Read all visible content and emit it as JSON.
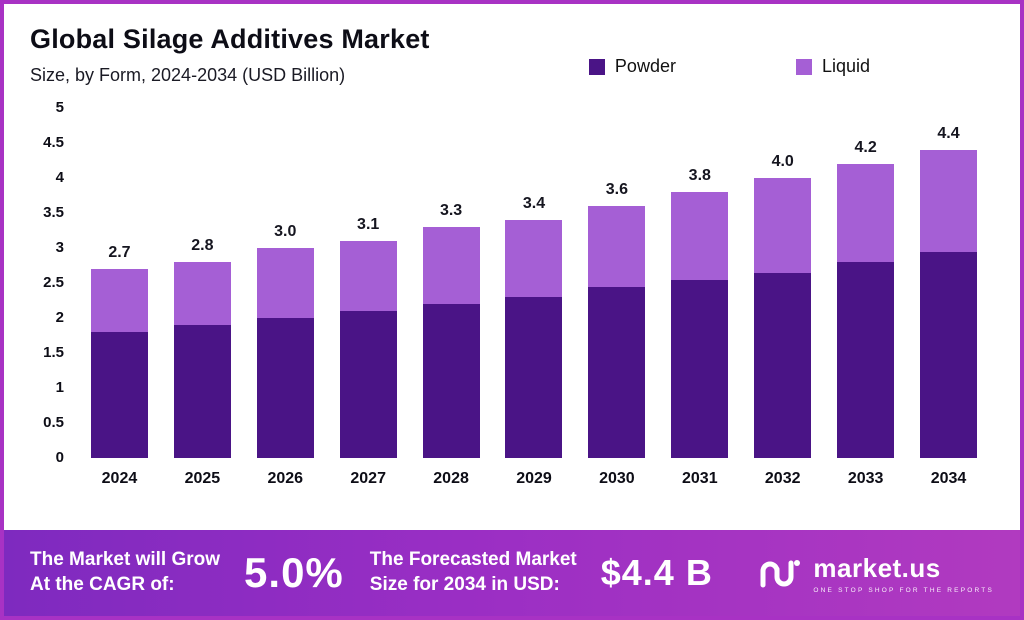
{
  "header": {
    "title": "Global Silage Additives Market",
    "subtitle": "Size, by Form, 2024-2034 (USD Billion)"
  },
  "chart_data": {
    "type": "bar",
    "stacked": true,
    "title": "Global Silage Additives Market",
    "subtitle": "Size, by Form, 2024-2034 (USD Billion)",
    "categories": [
      "2024",
      "2025",
      "2026",
      "2027",
      "2028",
      "2029",
      "2030",
      "2031",
      "2032",
      "2033",
      "2034"
    ],
    "series": [
      {
        "name": "Powder",
        "color": "#4a1486",
        "values": [
          1.8,
          1.9,
          2.0,
          2.1,
          2.2,
          2.3,
          2.45,
          2.55,
          2.65,
          2.8,
          2.95
        ]
      },
      {
        "name": "Liquid",
        "color": "#a55fd5",
        "values": [
          0.9,
          0.9,
          1.0,
          1.0,
          1.1,
          1.1,
          1.15,
          1.25,
          1.35,
          1.4,
          1.45
        ]
      }
    ],
    "totals": [
      "2.7",
      "2.8",
      "3.0",
      "3.1",
      "3.3",
      "3.4",
      "3.6",
      "3.8",
      "4.0",
      "4.2",
      "4.4"
    ],
    "ylim": [
      0,
      5
    ],
    "yticks": [
      "0",
      "0.5",
      "1",
      "1.5",
      "2",
      "2.5",
      "3",
      "3.5",
      "4",
      "4.5",
      "5"
    ],
    "legend_position": "top-right",
    "grid": false
  },
  "footer": {
    "cagr_label": "The Market will Grow\nAt the CAGR of:",
    "cagr_value": "5.0%",
    "forecast_label": "The Forecasted Market\nSize for 2034 in USD:",
    "forecast_value": "$4.4 B",
    "brand_name": "market.us",
    "brand_tagline": "One Stop Shop For The Reports"
  },
  "colors": {
    "powder": "#4a1486",
    "liquid": "#a55fd5",
    "frame_border": "#a832c4",
    "footer_gradient_start": "#7e2abf",
    "footer_gradient_end": "#b13ac0"
  }
}
